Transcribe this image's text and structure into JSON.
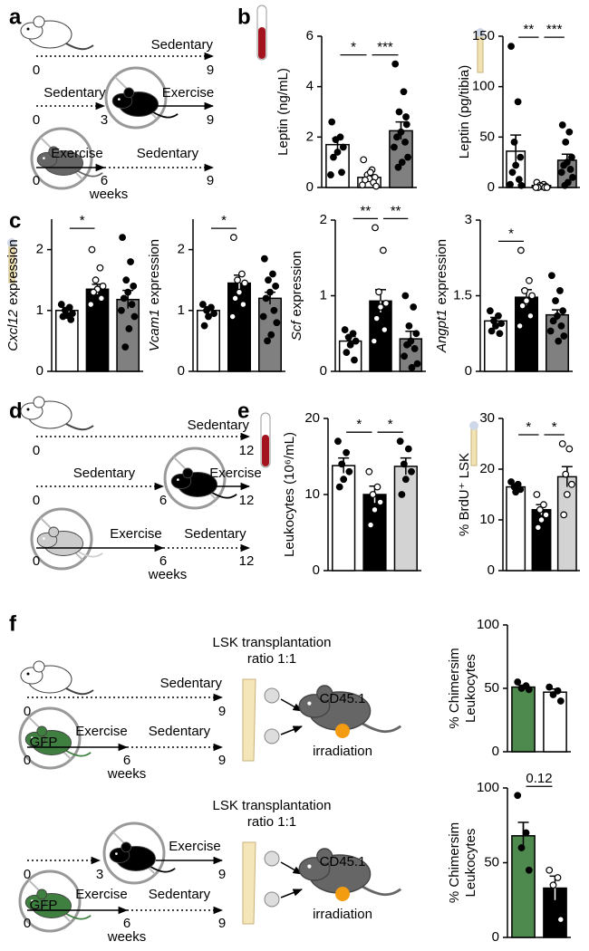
{
  "panel_labels": [
    "a",
    "b",
    "c",
    "d",
    "e",
    "f"
  ],
  "a_timeline": [
    "Sedentary",
    "0",
    "9",
    "Sedentary",
    "0",
    "3",
    "Exercise",
    "9",
    "Exercise",
    "Sedentary",
    "0",
    "6",
    "9",
    "weeks"
  ],
  "d_timeline": [
    "Sedentary",
    "0",
    "12",
    "Sedentary",
    "0",
    "6",
    "Exercise",
    "12",
    "Exercise",
    "Sedentary",
    "0",
    "6",
    "12",
    "weeks"
  ],
  "f_top": [
    "LSK transplantation",
    "ratio 1:1",
    "Sedentary",
    "0",
    "9",
    "Exercise",
    "Sedentary",
    "0",
    "6",
    "9",
    "weeks",
    "GFP",
    "CD45.1",
    "irradiation"
  ],
  "f_bottom": [
    "LSK transplantation",
    "ratio 1:1",
    "0",
    "3",
    "Exercise",
    "9",
    "Exercise",
    "Sedentary",
    "0",
    "6",
    "9",
    "weeks",
    "GFP",
    "CD45.1",
    "irradiation"
  ],
  "chart_data": [
    {
      "type": "bar",
      "ylabel": "Leptin (ng/mL)",
      "categories": [
        null,
        null,
        null
      ],
      "values": [
        1.7,
        0.4,
        2.25
      ],
      "errors": [
        0.25,
        0.1,
        0.35
      ],
      "colors": [
        "#ffffff",
        "#ffffff",
        "#808080"
      ],
      "markers": [
        "filled",
        "open",
        "filled"
      ],
      "points": [
        [
          2.6,
          2.0,
          1.9,
          1.6,
          1.4,
          1.2,
          0.6,
          0.5
        ],
        [
          1.1,
          0.7,
          0.5,
          0.4,
          0.35,
          0.3,
          0.2,
          0.1,
          0.05,
          0.6
        ],
        [
          4.9,
          3.8,
          3.0,
          2.5,
          2.2,
          2.0,
          1.8,
          1.6,
          1.2,
          1.0,
          0.8,
          2.8
        ]
      ],
      "ylim": [
        0,
        6
      ],
      "yticks": [
        0,
        2,
        4,
        6
      ],
      "brackets": [
        {
          "between": [
            0,
            1
          ],
          "label": "*"
        },
        {
          "between": [
            1,
            2
          ],
          "label": "***"
        }
      ]
    },
    {
      "type": "bar",
      "ylabel": "Leptin (pg/tibia)",
      "categories": [
        null,
        null,
        null
      ],
      "values": [
        36,
        2,
        27
      ],
      "errors": [
        16,
        1,
        6
      ],
      "colors": [
        "#ffffff",
        "#ffffff",
        "#808080"
      ],
      "markers": [
        "filled",
        "open",
        "filled"
      ],
      "points": [
        [
          140,
          85,
          45,
          30,
          22,
          15,
          8,
          3,
          2
        ],
        [
          5,
          3,
          2,
          1,
          1,
          0,
          0,
          0,
          0
        ],
        [
          62,
          55,
          45,
          30,
          25,
          22,
          18,
          15,
          10,
          5,
          2
        ]
      ],
      "ylim": [
        0,
        150
      ],
      "yticks": [
        0,
        50,
        100,
        150
      ],
      "brackets": [
        {
          "between": [
            0,
            1
          ],
          "label": "**"
        },
        {
          "between": [
            1,
            2
          ],
          "label": "***"
        }
      ]
    },
    {
      "type": "bar",
      "ylabel": {
        "italic": "Cxcl12",
        "text": "expression"
      },
      "categories": [
        null,
        null,
        null
      ],
      "values": [
        1.0,
        1.35,
        1.18
      ],
      "errors": [
        0.05,
        0.08,
        0.15
      ],
      "colors": [
        "#ffffff",
        "#000000",
        "#808080"
      ],
      "markers": [
        "filled",
        "open",
        "filled"
      ],
      "points": [
        [
          1.1,
          1.05,
          1.0,
          0.95,
          0.92,
          0.9,
          0.85
        ],
        [
          2.0,
          1.7,
          1.5,
          1.4,
          1.35,
          1.3,
          1.2,
          1.1
        ],
        [
          2.2,
          1.8,
          1.5,
          1.4,
          1.3,
          1.2,
          1.1,
          1.0,
          0.9,
          0.7,
          0.4
        ]
      ],
      "ylim": [
        0,
        2.5
      ],
      "yticks": [
        0,
        1,
        2
      ],
      "brackets": [
        {
          "between": [
            0,
            1
          ],
          "label": "*"
        }
      ]
    },
    {
      "type": "bar",
      "ylabel": {
        "italic": "Vcam1",
        "text": "expression"
      },
      "categories": [
        null,
        null,
        null
      ],
      "values": [
        1.0,
        1.45,
        1.2
      ],
      "errors": [
        0.06,
        0.13,
        0.1
      ],
      "colors": [
        "#ffffff",
        "#000000",
        "#808080"
      ],
      "markers": [
        "filled",
        "open",
        "filled"
      ],
      "points": [
        [
          1.1,
          1.05,
          1.0,
          0.95,
          0.9,
          0.75
        ],
        [
          2.2,
          1.6,
          1.5,
          1.45,
          1.3,
          1.2,
          1.1,
          0.9
        ],
        [
          1.85,
          1.6,
          1.5,
          1.4,
          1.3,
          1.2,
          1.0,
          0.9,
          0.8,
          0.6,
          0.5
        ]
      ],
      "ylim": [
        0,
        2.5
      ],
      "yticks": [
        0,
        1,
        2
      ],
      "brackets": [
        {
          "between": [
            0,
            1
          ],
          "label": "*"
        }
      ]
    },
    {
      "type": "bar",
      "ylabel": {
        "italic": "Scf",
        "text": "expression"
      },
      "categories": [
        null,
        null,
        null
      ],
      "values": [
        0.4,
        0.93,
        0.43
      ],
      "errors": [
        0.06,
        0.15,
        0.1
      ],
      "colors": [
        "#ffffff",
        "#000000",
        "#808080"
      ],
      "markers": [
        "filled",
        "open",
        "filled"
      ],
      "points": [
        [
          0.55,
          0.5,
          0.45,
          0.4,
          0.35,
          0.25,
          0.15
        ],
        [
          1.9,
          1.6,
          1.05,
          0.9,
          0.85,
          0.7,
          0.55,
          0.4
        ],
        [
          1.0,
          0.85,
          0.6,
          0.5,
          0.4,
          0.35,
          0.3,
          0.2,
          0.1,
          0.05
        ]
      ],
      "ylim": [
        0,
        2
      ],
      "yticks": [
        0,
        1,
        2
      ],
      "brackets": [
        {
          "between": [
            0,
            1
          ],
          "label": "**"
        },
        {
          "between": [
            1,
            2
          ],
          "label": "**"
        }
      ]
    },
    {
      "type": "bar",
      "ylabel": {
        "italic": "Angpt1",
        "text": "expression"
      },
      "categories": [
        null,
        null,
        null
      ],
      "values": [
        1.0,
        1.47,
        1.12
      ],
      "errors": [
        0.07,
        0.15,
        0.1
      ],
      "colors": [
        "#ffffff",
        "#000000",
        "#808080"
      ],
      "markers": [
        "filled",
        "open",
        "filled"
      ],
      "points": [
        [
          1.2,
          1.1,
          1.0,
          0.95,
          0.9,
          0.8,
          0.75
        ],
        [
          2.4,
          1.8,
          1.6,
          1.5,
          1.4,
          1.3,
          1.1,
          0.9
        ],
        [
          1.9,
          1.6,
          1.4,
          1.2,
          1.1,
          1.0,
          0.9,
          0.8,
          0.7,
          0.6
        ]
      ],
      "ylim": [
        0,
        3
      ],
      "yticks": [
        0,
        1.5,
        3
      ],
      "brackets": [
        {
          "between": [
            0,
            1
          ],
          "label": "*"
        }
      ]
    },
    {
      "type": "bar",
      "ylabel": "Leukocytes (10⁶/mL)",
      "categories": [
        null,
        null,
        null
      ],
      "values": [
        13.8,
        10,
        13.7
      ],
      "errors": [
        1,
        1.1,
        1.1
      ],
      "colors": [
        "#ffffff",
        "#000000",
        "#d3d3d3"
      ],
      "markers": [
        "filled",
        "open",
        "filled"
      ],
      "points": [
        [
          17,
          15.5,
          14,
          13,
          12,
          11
        ],
        [
          13,
          11,
          10,
          9,
          8,
          6
        ],
        [
          17,
          16,
          14,
          13,
          12,
          10
        ]
      ],
      "ylim": [
        0,
        20
      ],
      "yticks": [
        0,
        10,
        20
      ],
      "brackets": [
        {
          "between": [
            0,
            1
          ],
          "label": "*"
        },
        {
          "between": [
            1,
            2
          ],
          "label": "*"
        }
      ]
    },
    {
      "type": "bar",
      "ylabel": "% BrdU⁺ LSK",
      "categories": [
        null,
        null,
        null
      ],
      "values": [
        16.5,
        12,
        18.5
      ],
      "errors": [
        0.5,
        1,
        2
      ],
      "colors": [
        "#ffffff",
        "#000000",
        "#d3d3d3"
      ],
      "markers": [
        "filled",
        "open",
        "open"
      ],
      "points": [
        [
          17.5,
          17,
          16.5,
          16,
          15.5
        ],
        [
          15,
          13,
          12,
          11,
          10,
          8.5
        ],
        [
          25,
          24,
          19,
          17,
          15,
          11
        ]
      ],
      "ylim": [
        0,
        30
      ],
      "yticks": [
        0,
        10,
        20,
        30
      ],
      "brackets": [
        {
          "between": [
            0,
            1
          ],
          "label": "*"
        },
        {
          "between": [
            1,
            2
          ],
          "label": "*"
        }
      ]
    },
    {
      "type": "bar",
      "ylabel": [
        "% Chimersim",
        "Leukocytes"
      ],
      "categories": [
        null,
        null
      ],
      "values": [
        51,
        47
      ],
      "errors": [
        1.5,
        2.5
      ],
      "colors": [
        "#4e8a4e",
        "#ffffff"
      ],
      "markers": [
        "filled",
        "filled"
      ],
      "points": [
        [
          55,
          52,
          50,
          49
        ],
        [
          51,
          48,
          45,
          40
        ]
      ],
      "ylim": [
        0,
        100
      ],
      "yticks": [
        0,
        50,
        100
      ],
      "brackets": []
    },
    {
      "type": "bar",
      "ylabel": [
        "% Chimersim",
        "Leukocytes"
      ],
      "categories": [
        null,
        null
      ],
      "values": [
        68,
        33
      ],
      "errors": [
        9,
        8
      ],
      "colors": [
        "#4e8a4e",
        "#000000"
      ],
      "markers": [
        "filled",
        "open"
      ],
      "points": [
        [
          95,
          70,
          60,
          45
        ],
        [
          45,
          40,
          35,
          12
        ]
      ],
      "ylim": [
        0,
        100
      ],
      "yticks": [
        0,
        50,
        100
      ],
      "brackets": [
        {
          "between": [
            0,
            1
          ],
          "label": "0.12"
        }
      ]
    }
  ]
}
